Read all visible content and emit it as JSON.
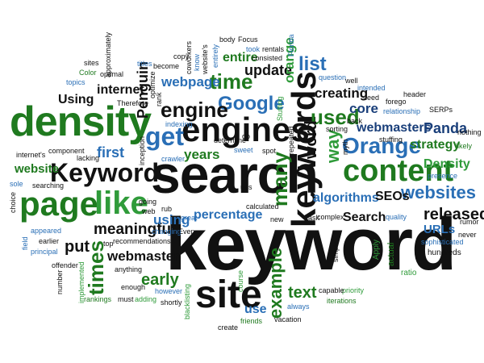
{
  "word_cloud": {
    "colors": {
      "black": "#111111",
      "dark_green": "#1f7a1f",
      "green": "#2f9b3a",
      "blue": "#2a6fb6",
      "dark_blue": "#1a3f7a",
      "gray": "#555555"
    },
    "words": [
      {
        "text": "keyword"
      },
      {
        "text": "search"
      },
      {
        "text": "density"
      },
      {
        "text": "engines"
      },
      {
        "text": "keywords"
      },
      {
        "text": "Keyword"
      },
      {
        "text": "page"
      },
      {
        "text": "site"
      },
      {
        "text": "content"
      },
      {
        "text": "like"
      },
      {
        "text": "get"
      },
      {
        "text": "Google"
      },
      {
        "text": "engine"
      },
      {
        "text": "time"
      },
      {
        "text": "list"
      },
      {
        "text": "used"
      },
      {
        "text": "Orange"
      },
      {
        "text": "websites"
      },
      {
        "text": "released"
      },
      {
        "text": "URLs"
      },
      {
        "text": "times"
      },
      {
        "text": "meaningful"
      },
      {
        "text": "webmaster"
      },
      {
        "text": "using"
      },
      {
        "text": "percentage"
      },
      {
        "text": "early"
      },
      {
        "text": "example"
      },
      {
        "text": "text"
      },
      {
        "text": "algorithms"
      },
      {
        "text": "SEOs"
      },
      {
        "text": "Search"
      },
      {
        "text": "webmasters"
      },
      {
        "text": "Panda"
      },
      {
        "text": "strategy"
      },
      {
        "text": "Density"
      },
      {
        "text": "presence"
      },
      {
        "text": "creating"
      },
      {
        "text": "core"
      },
      {
        "text": "way"
      },
      {
        "text": "word"
      },
      {
        "text": "many"
      },
      {
        "text": "update"
      },
      {
        "text": "orange"
      },
      {
        "text": "entire"
      },
      {
        "text": "webpage"
      },
      {
        "text": "Penguin"
      },
      {
        "text": "internet"
      },
      {
        "text": "Using"
      },
      {
        "text": "years"
      },
      {
        "text": "first"
      },
      {
        "text": "website"
      },
      {
        "text": "put"
      },
      {
        "text": "use"
      },
      {
        "text": "quality"
      },
      {
        "text": "Apply"
      },
      {
        "text": "actual"
      },
      {
        "text": "sophisticated"
      },
      {
        "text": "hundreds"
      },
      {
        "text": "ratio"
      },
      {
        "text": "priority"
      },
      {
        "text": "capable"
      },
      {
        "text": "iterations"
      },
      {
        "text": "always"
      },
      {
        "text": "vacation"
      },
      {
        "text": "friends"
      },
      {
        "text": "create"
      },
      {
        "text": "course"
      },
      {
        "text": "blacklisting"
      },
      {
        "text": "shortly"
      },
      {
        "text": "however"
      },
      {
        "text": "adding"
      },
      {
        "text": "must"
      },
      {
        "text": "enough"
      },
      {
        "text": "anything"
      },
      {
        "text": "rankings"
      },
      {
        "text": "implemented"
      },
      {
        "text": "offender"
      },
      {
        "text": "number"
      },
      {
        "text": "principal"
      },
      {
        "text": "earlier"
      },
      {
        "text": "appeared"
      },
      {
        "text": "field"
      },
      {
        "text": "choice"
      },
      {
        "text": "sole"
      },
      {
        "text": "searching"
      },
      {
        "text": "internet's"
      },
      {
        "text": "component"
      },
      {
        "text": "lacking"
      },
      {
        "text": "Therefore"
      },
      {
        "text": "topics"
      },
      {
        "text": "Color"
      },
      {
        "text": "sites"
      },
      {
        "text": "approximately"
      },
      {
        "text": "optimal"
      },
      {
        "text": "titles"
      },
      {
        "text": "become"
      },
      {
        "text": "copy"
      },
      {
        "text": "coworkers"
      },
      {
        "text": "know"
      },
      {
        "text": "website's"
      },
      {
        "text": "entirely"
      },
      {
        "text": "body"
      },
      {
        "text": "Focus"
      },
      {
        "text": "took"
      },
      {
        "text": "consisted"
      },
      {
        "text": "rentals"
      },
      {
        "text": "Florida"
      },
      {
        "text": "question"
      },
      {
        "text": "well"
      },
      {
        "text": "intended"
      },
      {
        "text": "need"
      },
      {
        "text": "forego"
      },
      {
        "text": "header"
      },
      {
        "text": "relationship"
      },
      {
        "text": "SERPs"
      },
      {
        "text": "nothing"
      },
      {
        "text": "likely"
      },
      {
        "text": "stuffing"
      },
      {
        "text": "Stuffing"
      },
      {
        "text": "back"
      },
      {
        "text": "sorting"
      },
      {
        "text": "myth"
      },
      {
        "text": "repeated"
      },
      {
        "text": "spot"
      },
      {
        "text": "go"
      },
      {
        "text": "determine"
      },
      {
        "text": "sweet"
      },
      {
        "text": "crawler"
      },
      {
        "text": "inception"
      },
      {
        "text": "indexing"
      },
      {
        "text": "rank"
      },
      {
        "text": "optimize"
      },
      {
        "text": "urls"
      },
      {
        "text": "calculated"
      },
      {
        "text": "new"
      },
      {
        "text": "ask"
      },
      {
        "text": "simple"
      },
      {
        "text": "complex"
      },
      {
        "text": "rumor"
      },
      {
        "text": "never"
      },
      {
        "text": "going"
      },
      {
        "text": "web"
      },
      {
        "text": "rub"
      },
      {
        "text": "great"
      },
      {
        "text": "changing"
      },
      {
        "text": "Even"
      },
      {
        "text": "top"
      },
      {
        "text": "recommendations"
      }
    ]
  }
}
